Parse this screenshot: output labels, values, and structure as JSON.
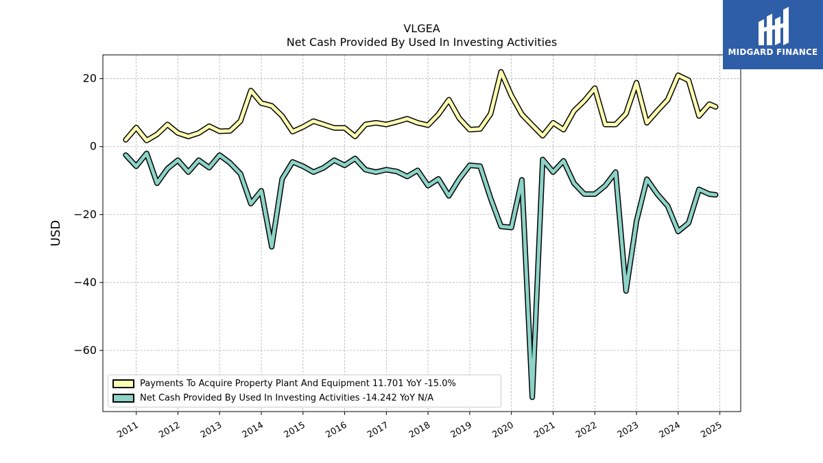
{
  "chart_data": {
    "type": "line",
    "title": "VLGEA",
    "subtitle": "Net Cash Provided By Used In Investing Activities",
    "ylabel": "USD",
    "xlabel": "",
    "ylim": [
      -78,
      27
    ],
    "xlim": [
      2010.2,
      2025.5
    ],
    "yticks": [
      20,
      0,
      -20,
      -40,
      -60
    ],
    "ytick_labels": [
      "20",
      "0",
      "−20",
      "−40",
      "−60"
    ],
    "xticks": [
      2011,
      2012,
      2013,
      2014,
      2015,
      2016,
      2017,
      2018,
      2019,
      2020,
      2021,
      2022,
      2023,
      2024,
      2025
    ],
    "xtick_labels": [
      "2011",
      "2012",
      "2013",
      "2014",
      "2015",
      "2016",
      "2017",
      "2018",
      "2019",
      "2020",
      "2021",
      "2022",
      "2023",
      "2024",
      "2025"
    ],
    "grid": true,
    "legend_position": "lower-left",
    "series": [
      {
        "name": "Payments To Acquire Property Plant And Equipment",
        "legend_label": "Payments To Acquire Property Plant And Equipment  11.701 YoY -15.0%",
        "color": "#ffffb3",
        "x": [
          2010.75,
          2011.0,
          2011.25,
          2011.5,
          2011.75,
          2012.0,
          2012.25,
          2012.5,
          2012.75,
          2013.0,
          2013.25,
          2013.5,
          2013.75,
          2014.0,
          2014.25,
          2014.5,
          2014.75,
          2015.0,
          2015.25,
          2015.5,
          2015.75,
          2016.0,
          2016.25,
          2016.5,
          2016.75,
          2017.0,
          2017.25,
          2017.5,
          2017.75,
          2018.0,
          2018.25,
          2018.5,
          2018.75,
          2019.0,
          2019.25,
          2019.5,
          2019.75,
          2020.0,
          2020.25,
          2020.5,
          2020.75,
          2021.0,
          2021.25,
          2021.5,
          2021.75,
          2022.0,
          2022.25,
          2022.5,
          2022.75,
          2023.0,
          2023.25,
          2023.5,
          2023.75,
          2024.0,
          2024.25,
          2024.5,
          2024.75,
          2024.9
        ],
        "values": [
          2.0,
          5.6,
          1.8,
          3.6,
          6.5,
          4.0,
          3.0,
          4.0,
          6.0,
          4.5,
          4.6,
          7.5,
          16.5,
          12.8,
          12.0,
          9.0,
          4.4,
          5.8,
          7.5,
          6.5,
          5.5,
          5.5,
          3.0,
          6.5,
          7.0,
          6.5,
          7.3,
          8.2,
          7.0,
          6.3,
          9.5,
          13.8,
          8.3,
          5.0,
          5.2,
          9.6,
          22.0,
          15.0,
          9.5,
          6.3,
          3.2,
          7.0,
          5.0,
          10.5,
          13.5,
          17.2,
          6.5,
          6.5,
          9.7,
          18.8,
          7.0,
          10.5,
          13.8,
          21.0,
          19.5,
          9.0,
          12.5,
          11.7
        ]
      },
      {
        "name": "Net Cash Provided By Used In Investing Activities",
        "legend_label": "Net Cash Provided By Used In Investing Activities  -14.242 YoY N/A",
        "color": "#8dd3c7",
        "x": [
          2010.75,
          2011.0,
          2011.25,
          2011.5,
          2011.75,
          2012.0,
          2012.25,
          2012.5,
          2012.75,
          2013.0,
          2013.25,
          2013.5,
          2013.75,
          2014.0,
          2014.25,
          2014.5,
          2014.75,
          2015.0,
          2015.25,
          2015.5,
          2015.75,
          2016.0,
          2016.25,
          2016.5,
          2016.75,
          2017.0,
          2017.25,
          2017.5,
          2017.75,
          2018.0,
          2018.25,
          2018.5,
          2018.75,
          2019.0,
          2019.25,
          2019.5,
          2019.75,
          2020.0,
          2020.25,
          2020.5,
          2020.75,
          2021.0,
          2021.25,
          2021.5,
          2021.75,
          2022.0,
          2022.25,
          2022.5,
          2022.75,
          2023.0,
          2023.25,
          2023.5,
          2023.75,
          2024.0,
          2024.25,
          2024.5,
          2024.75,
          2024.9
        ],
        "values": [
          -2.5,
          -5.8,
          -2.0,
          -10.8,
          -6.5,
          -4.0,
          -7.5,
          -4.0,
          -6.2,
          -2.5,
          -4.8,
          -8.0,
          -16.8,
          -13.0,
          -29.5,
          -9.5,
          -4.5,
          -5.8,
          -7.5,
          -6.2,
          -4.0,
          -5.5,
          -3.5,
          -6.8,
          -7.5,
          -6.8,
          -7.3,
          -8.8,
          -7.0,
          -11.5,
          -9.5,
          -14.5,
          -9.5,
          -5.5,
          -5.8,
          -15.2,
          -23.5,
          -23.8,
          -9.8,
          -73.8,
          -3.8,
          -7.5,
          -4.2,
          -10.8,
          -14.0,
          -14.0,
          -11.5,
          -7.5,
          -42.5,
          -22.0,
          -9.6,
          -14.0,
          -17.5,
          -25.0,
          -22.5,
          -12.6,
          -14.0,
          -14.2
        ]
      }
    ]
  },
  "logo": {
    "text": "MIDGARD FINANCE"
  }
}
